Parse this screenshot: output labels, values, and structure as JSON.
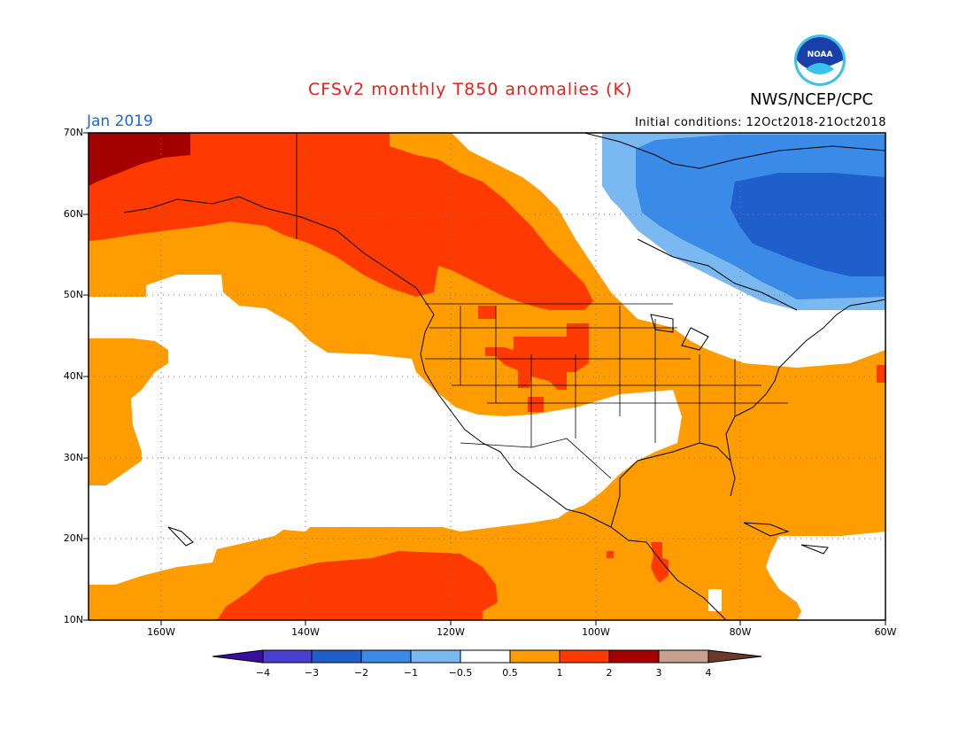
{
  "header": {
    "title": "CFSv2 monthly T850 anomalies (K)",
    "agency": "NWS/NCEP/CPC",
    "month": "Jan 2019",
    "initial_conditions": "Initial conditions: 12Oct2018-21Oct2018",
    "logo_text": "NOAA"
  },
  "map": {
    "lat_labels": [
      "70N",
      "60N",
      "50N",
      "40N",
      "30N",
      "20N",
      "10N"
    ],
    "lon_labels": [
      "160W",
      "140W",
      "120W",
      "100W",
      "80W",
      "60W"
    ],
    "colors": {
      "cold4": "#3a0e9e",
      "cold3": "#4a3fd0",
      "cold2": "#1f5fcc",
      "cold1": "#3a8ae8",
      "cold05": "#7ab8f2",
      "neutral": "#ffffff",
      "warm05": "#ff9d00",
      "warm1": "#ff3a00",
      "warm2": "#a50000",
      "warm3": "#c8a090",
      "warm4": "#6b3a2a"
    }
  },
  "colorbar": {
    "ticks": [
      "−4",
      "−3",
      "−2",
      "−1",
      "−0.5",
      "0.5",
      "1",
      "2",
      "3",
      "4"
    ]
  }
}
